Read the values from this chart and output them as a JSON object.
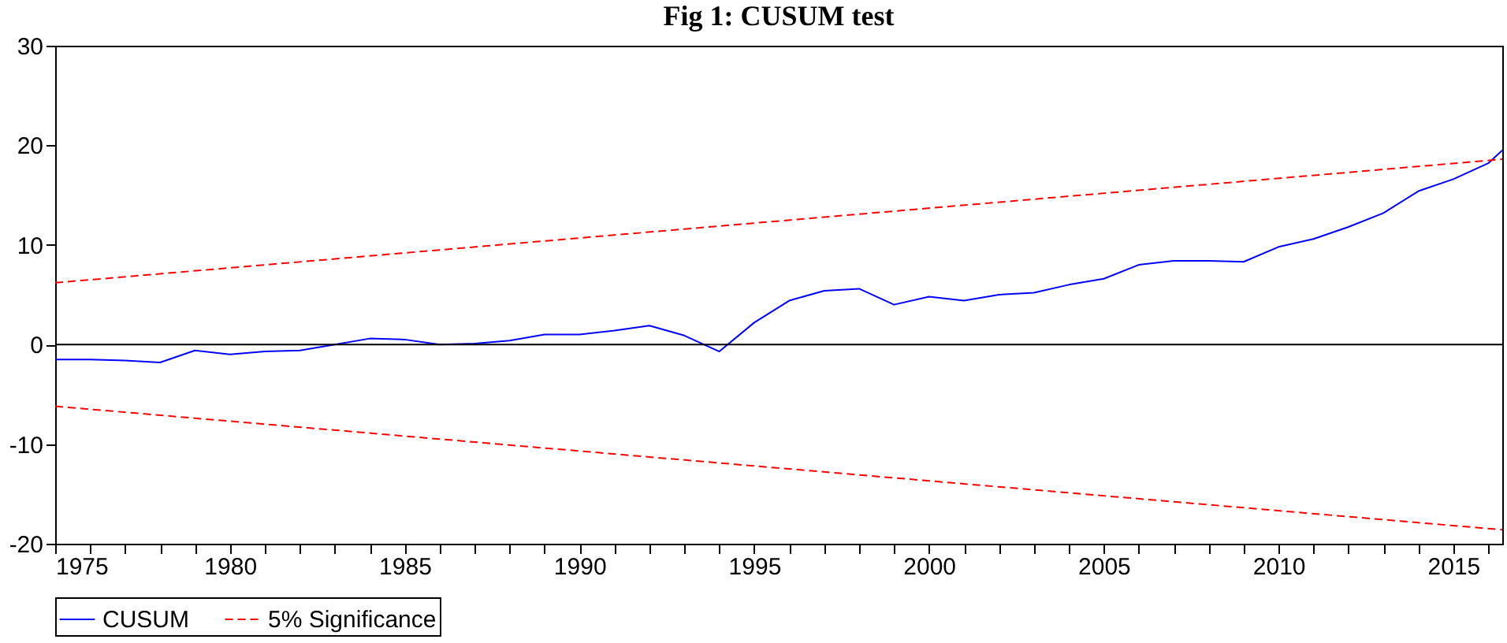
{
  "chart_data": {
    "type": "line",
    "title": "Fig 1: CUSUM test",
    "series": [
      {
        "name": "CUSUM",
        "color": "#0000ff",
        "line_style": "solid",
        "x": [
          1975,
          1976,
          1977,
          1978,
          1979,
          1980,
          1981,
          1982,
          1983,
          1984,
          1985,
          1986,
          1987,
          1988,
          1989,
          1990,
          1991,
          1992,
          1993,
          1994,
          1995,
          1996,
          1997,
          1998,
          1999,
          2000,
          2001,
          2002,
          2003,
          2004,
          2005,
          2006,
          2007,
          2008,
          2009,
          2010,
          2011,
          2012,
          2013,
          2014,
          2015,
          2016,
          2016.4
        ],
        "values": [
          -1.5,
          -1.5,
          -1.6,
          -1.8,
          -0.6,
          -1.0,
          -0.7,
          -0.6,
          0.0,
          0.6,
          0.5,
          0.0,
          0.1,
          0.4,
          1.0,
          1.0,
          1.4,
          1.9,
          0.9,
          -0.7,
          2.2,
          4.4,
          5.4,
          5.6,
          4.0,
          4.8,
          4.4,
          5.0,
          5.2,
          6.0,
          6.6,
          8.0,
          8.4,
          8.4,
          8.3,
          9.8,
          10.6,
          11.8,
          13.2,
          15.4,
          16.6,
          18.2,
          19.5
        ]
      },
      {
        "name": "5% Significance",
        "color": "#ff0000",
        "line_style": "dashed",
        "x": [
          1975,
          2016.4
        ],
        "values": [
          6.2,
          18.6
        ]
      },
      {
        "color": "#ff0000",
        "line_style": "dashed",
        "x": [
          1975,
          2016.4
        ],
        "values": [
          -6.2,
          -18.6
        ]
      }
    ],
    "xlim": [
      1975,
      2016.4
    ],
    "xticks": [
      1975,
      {
        "value": 1976,
        "label": null
      },
      {
        "value": 1977,
        "label": null
      },
      {
        "value": 1978,
        "label": null
      },
      {
        "value": 1979,
        "label": null
      },
      1980,
      {
        "value": 1981,
        "label": null
      },
      {
        "value": 1982,
        "label": null
      },
      {
        "value": 1983,
        "label": null
      },
      {
        "value": 1984,
        "label": null
      },
      1985,
      {
        "value": 1986,
        "label": null
      },
      {
        "value": 1987,
        "label": null
      },
      {
        "value": 1988,
        "label": null
      },
      {
        "value": 1989,
        "label": null
      },
      1990,
      {
        "value": 1991,
        "label": null
      },
      {
        "value": 1992,
        "label": null
      },
      {
        "value": 1993,
        "label": null
      },
      {
        "value": 1994,
        "label": null
      },
      1995,
      {
        "value": 1996,
        "label": null
      },
      {
        "value": 1997,
        "label": null
      },
      {
        "value": 1998,
        "label": null
      },
      {
        "value": 1999,
        "label": null
      },
      2000,
      {
        "value": 2001,
        "label": null
      },
      {
        "value": 2002,
        "label": null
      },
      {
        "value": 2003,
        "label": null
      },
      {
        "value": 2004,
        "label": null
      },
      2005,
      {
        "value": 2006,
        "label": null
      },
      {
        "value": 2007,
        "label": null
      },
      {
        "value": 2008,
        "label": null
      },
      {
        "value": 2009,
        "label": null
      },
      2010,
      {
        "value": 2011,
        "label": null
      },
      {
        "value": 2012,
        "label": null
      },
      {
        "value": 2013,
        "label": null
      },
      {
        "value": 2014,
        "label": null
      },
      2015,
      {
        "value": 2016,
        "label": null
      }
    ],
    "ylim": [
      -20,
      30
    ],
    "yticks": [
      -20,
      -10,
      0,
      10,
      20,
      30
    ],
    "ref_lines": [
      {
        "axis": "y",
        "value": 0,
        "color": "#000000",
        "line_style": "solid"
      }
    ],
    "grid": false,
    "legend": "bottom",
    "marker": "none"
  }
}
